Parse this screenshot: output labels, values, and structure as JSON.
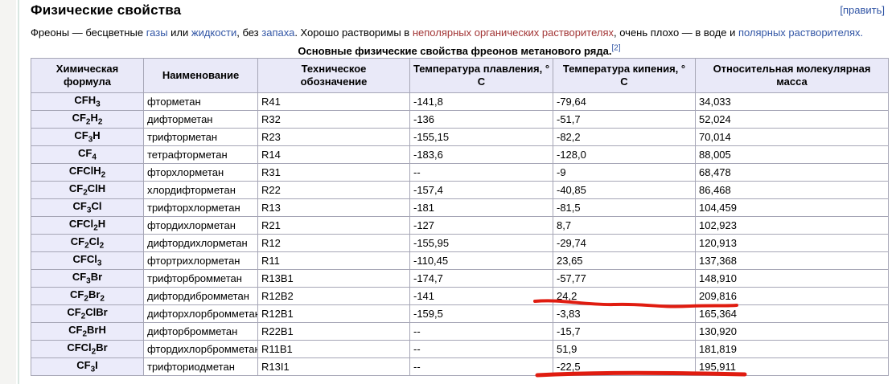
{
  "section": {
    "heading": "Физические свойства",
    "edit_label": "[править]"
  },
  "intro": {
    "segments": [
      {
        "text": "Фреоны — бесцветные ",
        "style": "plain"
      },
      {
        "text": "газы",
        "style": "link"
      },
      {
        "text": " или ",
        "style": "plain"
      },
      {
        "text": "жидкости",
        "style": "link"
      },
      {
        "text": ", без ",
        "style": "plain"
      },
      {
        "text": "запаха",
        "style": "link"
      },
      {
        "text": ". Хорошо растворимы в ",
        "style": "plain"
      },
      {
        "text": "неполярных органических растворителях",
        "style": "redlink"
      },
      {
        "text": ", очень плохо — в воде и ",
        "style": "plain"
      },
      {
        "text": "полярных растворителях.",
        "style": "link"
      }
    ]
  },
  "table": {
    "caption": "Основные физические свойства фреонов метанового ряда.",
    "caption_ref": "[2]",
    "columns": [
      "Химическая\nформула",
      "Наименование",
      "Техническое\nобозначение",
      "Температура плавления, °\nС",
      "Температура кипения, °\nС",
      "Относительная молекулярная\nмасса"
    ],
    "rows": [
      {
        "formula": "CFH~3~",
        "name": "фторметан",
        "code": "R41",
        "melting": "-141,8",
        "boiling": "-79,64",
        "mass": "34,033"
      },
      {
        "formula": "CF~2~H~2~",
        "name": "дифторметан",
        "code": "R32",
        "melting": "-136",
        "boiling": "-51,7",
        "mass": "52,024"
      },
      {
        "formula": "CF~3~H",
        "name": "трифторметан",
        "code": "R23",
        "melting": "-155,15",
        "boiling": "-82,2",
        "mass": "70,014"
      },
      {
        "formula": "CF~4~",
        "name": "тетрафторметан",
        "code": "R14",
        "melting": "-183,6",
        "boiling": "-128,0",
        "mass": "88,005"
      },
      {
        "formula": "CFClH~2~",
        "name": "фторхлорметан",
        "code": "R31",
        "melting": "--",
        "boiling": "-9",
        "mass": "68,478"
      },
      {
        "formula": "CF~2~ClH",
        "name": "хлордифторметан",
        "code": "R22",
        "melting": "-157,4",
        "boiling": "-40,85",
        "mass": "86,468"
      },
      {
        "formula": "CF~3~Cl",
        "name": "трифторхлорметан",
        "code": "R13",
        "melting": "-181",
        "boiling": "-81,5",
        "mass": "104,459"
      },
      {
        "formula": "CFCl~2~H",
        "name": "фтордихлорметан",
        "code": "R21",
        "melting": "-127",
        "boiling": "8,7",
        "mass": "102,923"
      },
      {
        "formula": "CF~2~Cl~2~",
        "name": "дифтордихлорметан",
        "code": "R12",
        "melting": "-155,95",
        "boiling": "-29,74",
        "mass": "120,913"
      },
      {
        "formula": "CFCl~3~",
        "name": "фтортрихлорметан",
        "code": "R11",
        "melting": "-110,45",
        "boiling": "23,65",
        "mass": "137,368"
      },
      {
        "formula": "CF~3~Br",
        "name": "трифторбромметан",
        "code": "R13B1",
        "melting": "-174,7",
        "boiling": "-57,77",
        "mass": "148,910"
      },
      {
        "formula": "CF~2~Br~2~",
        "name": "дифтордибромметан",
        "code": "R12B2",
        "melting": "-141",
        "boiling": "24,2",
        "mass": "209,816"
      },
      {
        "formula": "CF~2~ClBr",
        "name": "дифторхлорбромметан",
        "code": "R12B1",
        "melting": "-159,5",
        "boiling": "-3,83",
        "mass": "165,364"
      },
      {
        "formula": "CF~2~BrH",
        "name": "дифторбромметан",
        "code": "R22B1",
        "melting": "--",
        "boiling": "-15,7",
        "mass": "130,920"
      },
      {
        "formula": "CFCl~2~Br",
        "name": "фтордихлорбромметан",
        "code": "R11B1",
        "melting": "--",
        "boiling": "51,9",
        "mass": "181,819"
      },
      {
        "formula": "CF~3~I",
        "name": "трифториодметан",
        "code": "R13I1",
        "melting": "--",
        "boiling": "-22,5",
        "mass": "195,911"
      }
    ]
  },
  "annotations": {
    "color": "#e01c10",
    "items": [
      {
        "row_code": "R12B2",
        "underlined_values": [
          "24,2",
          "209,816"
        ]
      },
      {
        "row_code": "R13I1",
        "underlined_values": [
          "-22,5",
          "195,911"
        ]
      }
    ]
  },
  "colors": {
    "link_blue": "#3155a5",
    "link_red": "#a23535",
    "header_bg": "#e9e9f8",
    "formula_col_bg": "#ebebfa",
    "table_border": "#a6a6b6",
    "annotation_red": "#e01c10",
    "sidebar_gray": "#f4f4f2"
  }
}
